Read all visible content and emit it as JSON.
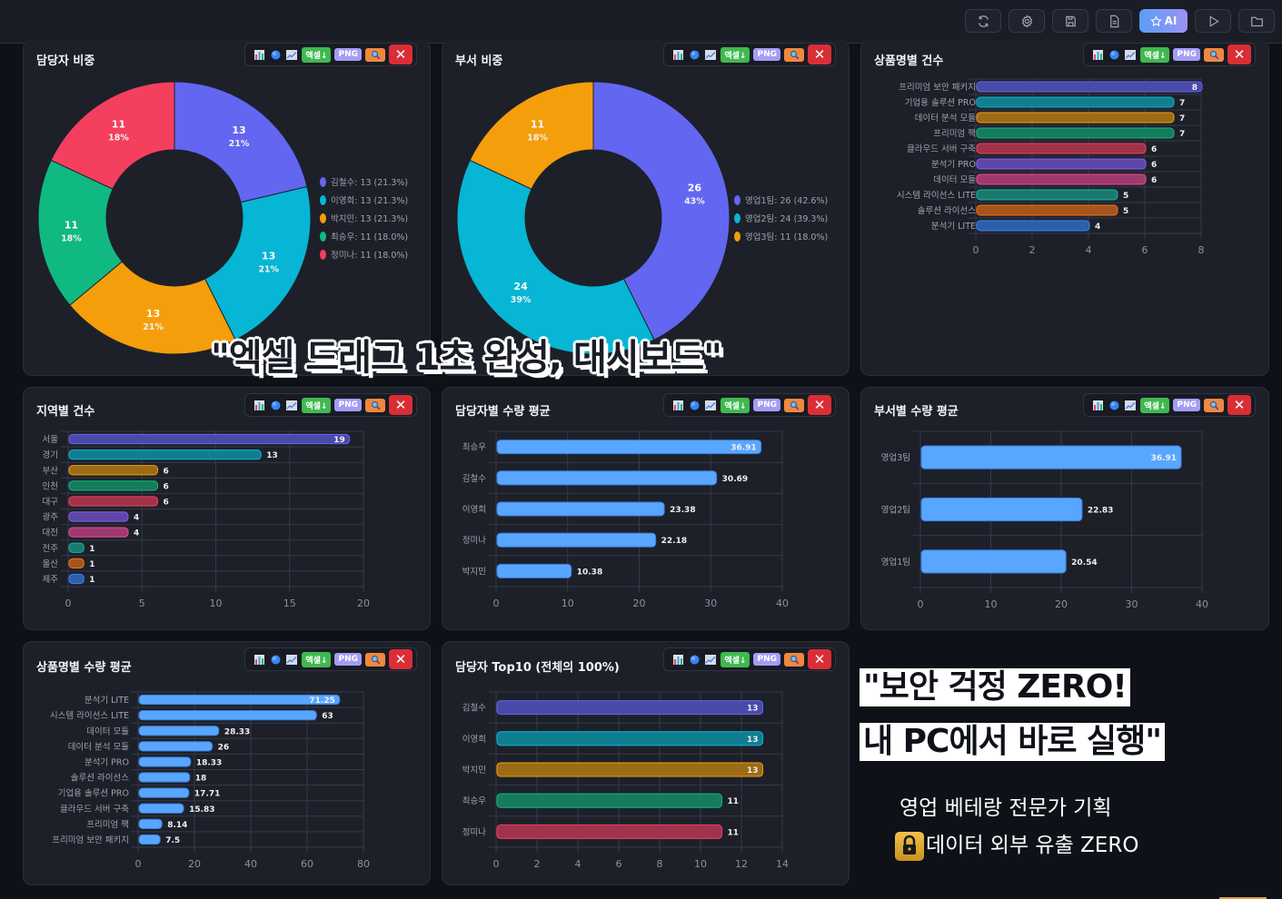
{
  "topbar": {
    "buttons": [
      {
        "name": "refresh",
        "icon": "refresh-icon"
      },
      {
        "name": "settings",
        "icon": "gear-icon"
      },
      {
        "name": "save",
        "icon": "save-icon"
      },
      {
        "name": "document",
        "icon": "document-icon"
      },
      {
        "name": "ai",
        "icon": "star-icon",
        "label": "AI"
      },
      {
        "name": "play",
        "icon": "play-icon"
      },
      {
        "name": "folder",
        "icon": "folder-icon"
      }
    ],
    "ai_label": "AI"
  },
  "toolbar": {
    "excel_label": "엑셀↓",
    "png_label": "PNG",
    "close_label": "✕"
  },
  "panels": {
    "p1": {
      "title": "담당자 비중"
    },
    "p2": {
      "title": "부서 비중"
    },
    "p3": {
      "title": "상품명별 건수"
    },
    "p4": {
      "title": "지역별 건수"
    },
    "p5": {
      "title": "담당자별 수량 평균"
    },
    "p6": {
      "title": "부서별 수량 평균"
    },
    "p7": {
      "title": "상품명별 수량 평균"
    },
    "p8": {
      "title": "담당자 Top10 (전체의 100%)"
    }
  },
  "overlay": {
    "headline": "\"엑셀 드래그 1초 완성, 대시보드\"",
    "promo_line1": "\"보안 걱정 ZERO!",
    "promo_line2": "내 PC에서 바로 실행\"",
    "sub1": "영업 베테랑 전문가 기획",
    "sub2": "데이터 외부 유출 ZERO"
  },
  "chart_data": [
    {
      "id": "p1",
      "type": "pie",
      "title": "담당자 비중",
      "donut": true,
      "categories": [
        "김철수",
        "이영희",
        "박지민",
        "최승우",
        "정미나"
      ],
      "values": [
        13,
        13,
        13,
        11,
        11
      ],
      "percent_labels": [
        "21%",
        "21%",
        "21%",
        "18%",
        "18%"
      ],
      "legend": [
        "김철수: 13 (21.3%)",
        "이영희: 13 (21.3%)",
        "박지민: 13 (21.3%)",
        "최승우: 11 (18.0%)",
        "정미나: 11 (18.0%)"
      ],
      "colors": [
        "#6366f1",
        "#06b6d4",
        "#f59e0b",
        "#10b981",
        "#f43f5e"
      ],
      "legend_position": "right"
    },
    {
      "id": "p2",
      "type": "pie",
      "title": "부서 비중",
      "donut": true,
      "categories": [
        "영업1팀",
        "영업2팀",
        "영업3팀"
      ],
      "values": [
        26,
        24,
        11
      ],
      "percent_labels": [
        "43%",
        "39%",
        "18%"
      ],
      "legend": [
        "영업1팀: 26 (42.6%)",
        "영업2팀: 24 (39.3%)",
        "영업3팀: 11 (18.0%)"
      ],
      "colors": [
        "#6366f1",
        "#06b6d4",
        "#f59e0b"
      ],
      "legend_position": "right"
    },
    {
      "id": "p3",
      "type": "bar",
      "orientation": "horizontal",
      "title": "상품명별 건수",
      "categories": [
        "프리미엄 보안 패키지",
        "기업용 솔루션 PRO",
        "데이터 분석 모듈",
        "프리미엄 팩",
        "클라우드 서버 구축",
        "분석기 PRO",
        "데이터 모듈",
        "시스템 라이선스 LITE",
        "솔루션 라이선스",
        "분석기 LITE"
      ],
      "values": [
        8,
        7,
        7,
        7,
        6,
        6,
        6,
        5,
        5,
        4
      ],
      "xticks": [
        "0",
        "2",
        "4",
        "6",
        "8"
      ],
      "xlim": [
        0,
        8
      ],
      "grid": true,
      "colors": [
        "#4a4aa8",
        "#117d91",
        "#9c6b16",
        "#157c5c",
        "#a0334a",
        "#5e45a8",
        "#9e3a6e",
        "#1a7a70",
        "#a5551c",
        "#2b5fab"
      ],
      "borders": [
        "#6366f1",
        "#06b6d4",
        "#f59e0b",
        "#10b981",
        "#f43f5e",
        "#8b5cf6",
        "#ec4899",
        "#14b8a6",
        "#f97316",
        "#3b82f6"
      ]
    },
    {
      "id": "p4",
      "type": "bar",
      "orientation": "horizontal",
      "title": "지역별 건수",
      "categories": [
        "서울",
        "경기",
        "부산",
        "인천",
        "대구",
        "광주",
        "대전",
        "전주",
        "울산",
        "제주"
      ],
      "values": [
        19,
        13,
        6,
        6,
        6,
        4,
        4,
        1,
        1,
        1
      ],
      "xticks": [
        "0",
        "5",
        "10",
        "15",
        "20"
      ],
      "xlim": [
        0,
        20
      ],
      "grid": true,
      "colors": [
        "#4a4aa8",
        "#117d91",
        "#9c6b16",
        "#157c5c",
        "#a0334a",
        "#5e45a8",
        "#9e3a6e",
        "#1a7a70",
        "#a5551c",
        "#2b5fab"
      ],
      "borders": [
        "#6366f1",
        "#06b6d4",
        "#f59e0b",
        "#10b981",
        "#f43f5e",
        "#8b5cf6",
        "#ec4899",
        "#14b8a6",
        "#f97316",
        "#3b82f6"
      ]
    },
    {
      "id": "p5",
      "type": "bar",
      "orientation": "horizontal",
      "title": "담당자별 수량 평균",
      "categories": [
        "최승우",
        "김철수",
        "이영희",
        "정미나",
        "박지민"
      ],
      "values": [
        36.91,
        30.69,
        23.38,
        22.18,
        10.38
      ],
      "xticks": [
        "0",
        "10",
        "20",
        "30",
        "40"
      ],
      "xlim": [
        0,
        40
      ],
      "grid": true,
      "colors": [
        "#58a6ff"
      ],
      "borders": [
        "#3b7dd8"
      ]
    },
    {
      "id": "p6",
      "type": "bar",
      "orientation": "horizontal",
      "title": "부서별 수량 평균",
      "categories": [
        "영업3팀",
        "영업2팀",
        "영업1팀"
      ],
      "values": [
        36.91,
        22.83,
        20.54
      ],
      "xticks": [
        "0",
        "10",
        "20",
        "30",
        "40"
      ],
      "xlim": [
        0,
        40
      ],
      "grid": true,
      "colors": [
        "#58a6ff"
      ],
      "borders": [
        "#3b7dd8"
      ]
    },
    {
      "id": "p7",
      "type": "bar",
      "orientation": "horizontal",
      "title": "상품명별 수량 평균",
      "categories": [
        "분석기 LITE",
        "시스템 라이선스 LITE",
        "데이터 모듈",
        "데이터 분석 모듈",
        "분석기 PRO",
        "솔루션 라이선스",
        "기업용 솔루션 PRO",
        "클라우드 서버 구축",
        "프리미엄 팩",
        "프리미엄 보안 패키지"
      ],
      "values": [
        71.25,
        63,
        28.33,
        26,
        18.33,
        18,
        17.71,
        15.83,
        8.14,
        7.5
      ],
      "xticks": [
        "0",
        "20",
        "40",
        "60",
        "80"
      ],
      "xlim": [
        0,
        80
      ],
      "grid": true,
      "colors": [
        "#58a6ff"
      ],
      "borders": [
        "#3b7dd8"
      ]
    },
    {
      "id": "p8",
      "type": "bar",
      "orientation": "horizontal",
      "title": "담당자 Top10 (전체의 100%)",
      "categories": [
        "김철수",
        "이영희",
        "박지민",
        "최승우",
        "정미나"
      ],
      "values": [
        13,
        13,
        13,
        11,
        11
      ],
      "xticks": [
        "0",
        "2",
        "4",
        "6",
        "8",
        "10",
        "12",
        "14"
      ],
      "xlim": [
        0,
        14
      ],
      "grid": true,
      "colors": [
        "#4a4aa8",
        "#117d91",
        "#9c6b16",
        "#157c5c",
        "#a0334a"
      ],
      "borders": [
        "#6366f1",
        "#06b6d4",
        "#f59e0b",
        "#10b981",
        "#f43f5e"
      ]
    }
  ]
}
